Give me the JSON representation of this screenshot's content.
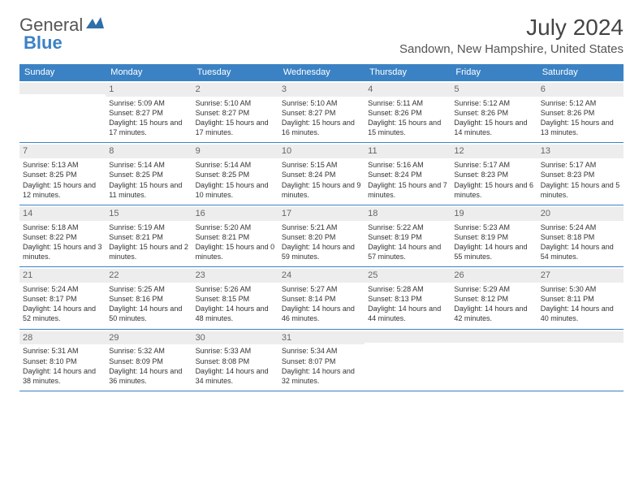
{
  "logo": {
    "part1": "General",
    "part2": "Blue"
  },
  "title": "July 2024",
  "location": "Sandown, New Hampshire, United States",
  "header_bg": "#3b82c4",
  "day_headers": [
    "Sunday",
    "Monday",
    "Tuesday",
    "Wednesday",
    "Thursday",
    "Friday",
    "Saturday"
  ],
  "weeks": [
    [
      {
        "num": "",
        "sunrise": "",
        "sunset": "",
        "daylight": ""
      },
      {
        "num": "1",
        "sunrise": "Sunrise: 5:09 AM",
        "sunset": "Sunset: 8:27 PM",
        "daylight": "Daylight: 15 hours and 17 minutes."
      },
      {
        "num": "2",
        "sunrise": "Sunrise: 5:10 AM",
        "sunset": "Sunset: 8:27 PM",
        "daylight": "Daylight: 15 hours and 17 minutes."
      },
      {
        "num": "3",
        "sunrise": "Sunrise: 5:10 AM",
        "sunset": "Sunset: 8:27 PM",
        "daylight": "Daylight: 15 hours and 16 minutes."
      },
      {
        "num": "4",
        "sunrise": "Sunrise: 5:11 AM",
        "sunset": "Sunset: 8:26 PM",
        "daylight": "Daylight: 15 hours and 15 minutes."
      },
      {
        "num": "5",
        "sunrise": "Sunrise: 5:12 AM",
        "sunset": "Sunset: 8:26 PM",
        "daylight": "Daylight: 15 hours and 14 minutes."
      },
      {
        "num": "6",
        "sunrise": "Sunrise: 5:12 AM",
        "sunset": "Sunset: 8:26 PM",
        "daylight": "Daylight: 15 hours and 13 minutes."
      }
    ],
    [
      {
        "num": "7",
        "sunrise": "Sunrise: 5:13 AM",
        "sunset": "Sunset: 8:25 PM",
        "daylight": "Daylight: 15 hours and 12 minutes."
      },
      {
        "num": "8",
        "sunrise": "Sunrise: 5:14 AM",
        "sunset": "Sunset: 8:25 PM",
        "daylight": "Daylight: 15 hours and 11 minutes."
      },
      {
        "num": "9",
        "sunrise": "Sunrise: 5:14 AM",
        "sunset": "Sunset: 8:25 PM",
        "daylight": "Daylight: 15 hours and 10 minutes."
      },
      {
        "num": "10",
        "sunrise": "Sunrise: 5:15 AM",
        "sunset": "Sunset: 8:24 PM",
        "daylight": "Daylight: 15 hours and 9 minutes."
      },
      {
        "num": "11",
        "sunrise": "Sunrise: 5:16 AM",
        "sunset": "Sunset: 8:24 PM",
        "daylight": "Daylight: 15 hours and 7 minutes."
      },
      {
        "num": "12",
        "sunrise": "Sunrise: 5:17 AM",
        "sunset": "Sunset: 8:23 PM",
        "daylight": "Daylight: 15 hours and 6 minutes."
      },
      {
        "num": "13",
        "sunrise": "Sunrise: 5:17 AM",
        "sunset": "Sunset: 8:23 PM",
        "daylight": "Daylight: 15 hours and 5 minutes."
      }
    ],
    [
      {
        "num": "14",
        "sunrise": "Sunrise: 5:18 AM",
        "sunset": "Sunset: 8:22 PM",
        "daylight": "Daylight: 15 hours and 3 minutes."
      },
      {
        "num": "15",
        "sunrise": "Sunrise: 5:19 AM",
        "sunset": "Sunset: 8:21 PM",
        "daylight": "Daylight: 15 hours and 2 minutes."
      },
      {
        "num": "16",
        "sunrise": "Sunrise: 5:20 AM",
        "sunset": "Sunset: 8:21 PM",
        "daylight": "Daylight: 15 hours and 0 minutes."
      },
      {
        "num": "17",
        "sunrise": "Sunrise: 5:21 AM",
        "sunset": "Sunset: 8:20 PM",
        "daylight": "Daylight: 14 hours and 59 minutes."
      },
      {
        "num": "18",
        "sunrise": "Sunrise: 5:22 AM",
        "sunset": "Sunset: 8:19 PM",
        "daylight": "Daylight: 14 hours and 57 minutes."
      },
      {
        "num": "19",
        "sunrise": "Sunrise: 5:23 AM",
        "sunset": "Sunset: 8:19 PM",
        "daylight": "Daylight: 14 hours and 55 minutes."
      },
      {
        "num": "20",
        "sunrise": "Sunrise: 5:24 AM",
        "sunset": "Sunset: 8:18 PM",
        "daylight": "Daylight: 14 hours and 54 minutes."
      }
    ],
    [
      {
        "num": "21",
        "sunrise": "Sunrise: 5:24 AM",
        "sunset": "Sunset: 8:17 PM",
        "daylight": "Daylight: 14 hours and 52 minutes."
      },
      {
        "num": "22",
        "sunrise": "Sunrise: 5:25 AM",
        "sunset": "Sunset: 8:16 PM",
        "daylight": "Daylight: 14 hours and 50 minutes."
      },
      {
        "num": "23",
        "sunrise": "Sunrise: 5:26 AM",
        "sunset": "Sunset: 8:15 PM",
        "daylight": "Daylight: 14 hours and 48 minutes."
      },
      {
        "num": "24",
        "sunrise": "Sunrise: 5:27 AM",
        "sunset": "Sunset: 8:14 PM",
        "daylight": "Daylight: 14 hours and 46 minutes."
      },
      {
        "num": "25",
        "sunrise": "Sunrise: 5:28 AM",
        "sunset": "Sunset: 8:13 PM",
        "daylight": "Daylight: 14 hours and 44 minutes."
      },
      {
        "num": "26",
        "sunrise": "Sunrise: 5:29 AM",
        "sunset": "Sunset: 8:12 PM",
        "daylight": "Daylight: 14 hours and 42 minutes."
      },
      {
        "num": "27",
        "sunrise": "Sunrise: 5:30 AM",
        "sunset": "Sunset: 8:11 PM",
        "daylight": "Daylight: 14 hours and 40 minutes."
      }
    ],
    [
      {
        "num": "28",
        "sunrise": "Sunrise: 5:31 AM",
        "sunset": "Sunset: 8:10 PM",
        "daylight": "Daylight: 14 hours and 38 minutes."
      },
      {
        "num": "29",
        "sunrise": "Sunrise: 5:32 AM",
        "sunset": "Sunset: 8:09 PM",
        "daylight": "Daylight: 14 hours and 36 minutes."
      },
      {
        "num": "30",
        "sunrise": "Sunrise: 5:33 AM",
        "sunset": "Sunset: 8:08 PM",
        "daylight": "Daylight: 14 hours and 34 minutes."
      },
      {
        "num": "31",
        "sunrise": "Sunrise: 5:34 AM",
        "sunset": "Sunset: 8:07 PM",
        "daylight": "Daylight: 14 hours and 32 minutes."
      },
      {
        "num": "",
        "sunrise": "",
        "sunset": "",
        "daylight": ""
      },
      {
        "num": "",
        "sunrise": "",
        "sunset": "",
        "daylight": ""
      },
      {
        "num": "",
        "sunrise": "",
        "sunset": "",
        "daylight": ""
      }
    ]
  ]
}
